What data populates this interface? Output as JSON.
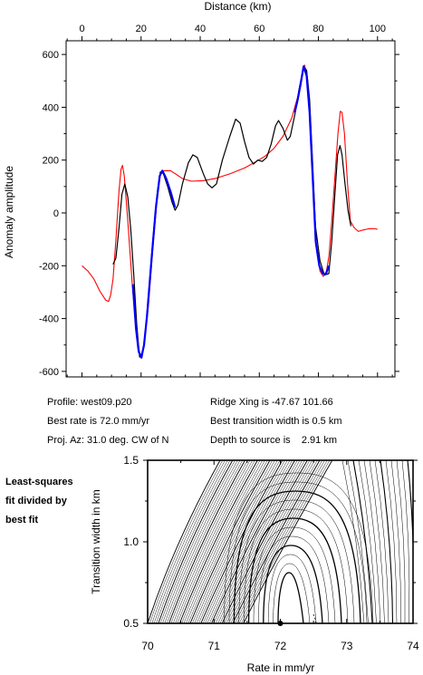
{
  "chart_data": [
    {
      "type": "line",
      "title": "",
      "xlabel": "Distance (km)",
      "ylabel": "Anomaly amplitude",
      "xlim": [
        -10,
        105
      ],
      "ylim": [
        -610,
        610
      ],
      "xticks": [
        0,
        20,
        40,
        60,
        80,
        100
      ],
      "yticks": [
        -600,
        -400,
        -200,
        0,
        200,
        400,
        600
      ],
      "x_axis_position": "top",
      "grid": false,
      "series": [
        {
          "role": "observed profile",
          "color": "#000000",
          "points": [
            [
              10.5,
              -195
            ],
            [
              11.5,
              -170
            ],
            [
              12.5,
              -60
            ],
            [
              13.5,
              70
            ],
            [
              14.5,
              110
            ],
            [
              15.5,
              60
            ],
            [
              16.5,
              -60
            ],
            [
              17.5,
              -230
            ],
            [
              18.5,
              -420
            ],
            [
              19.5,
              -545
            ],
            [
              20.3,
              -548
            ],
            [
              21.3,
              -470
            ],
            [
              22.5,
              -310
            ],
            [
              24,
              -100
            ],
            [
              25.5,
              80
            ],
            [
              26.5,
              155
            ],
            [
              27.5,
              150
            ],
            [
              29,
              100
            ],
            [
              30.5,
              40
            ],
            [
              31.5,
              10
            ],
            [
              32.5,
              30
            ],
            [
              34,
              110
            ],
            [
              36,
              190
            ],
            [
              37.5,
              220
            ],
            [
              39,
              210
            ],
            [
              41,
              150
            ],
            [
              42.5,
              110
            ],
            [
              44,
              95
            ],
            [
              45.5,
              110
            ],
            [
              47.5,
              200
            ],
            [
              50,
              290
            ],
            [
              52,
              355
            ],
            [
              53.5,
              340
            ],
            [
              55,
              270
            ],
            [
              56.5,
              210
            ],
            [
              58,
              185
            ],
            [
              59.5,
              200
            ],
            [
              61,
              195
            ],
            [
              62.5,
              210
            ],
            [
              64,
              260
            ],
            [
              65.5,
              330
            ],
            [
              66.5,
              350
            ],
            [
              68,
              320
            ],
            [
              69.5,
              275
            ],
            [
              70.5,
              290
            ],
            [
              72,
              370
            ],
            [
              73.5,
              470
            ],
            [
              75,
              555
            ],
            [
              76,
              540
            ],
            [
              77,
              430
            ],
            [
              78,
              200
            ],
            [
              79,
              -50
            ],
            [
              80.5,
              -180
            ],
            [
              82,
              -235
            ],
            [
              83.5,
              -230
            ],
            [
              84.5,
              -110
            ],
            [
              85.5,
              60
            ],
            [
              86.5,
              220
            ],
            [
              87.3,
              255
            ],
            [
              88,
              220
            ],
            [
              89,
              110
            ],
            [
              90,
              10
            ],
            [
              91,
              -50
            ]
          ]
        },
        {
          "role": "model fit",
          "color": "#ff0000",
          "points": [
            [
              0,
              -200
            ],
            [
              2,
              -220
            ],
            [
              4,
              -250
            ],
            [
              6,
              -295
            ],
            [
              8,
              -330
            ],
            [
              9,
              -335
            ],
            [
              9.7,
              -310
            ],
            [
              10.5,
              -250
            ],
            [
              11.5,
              -100
            ],
            [
              12.5,
              80
            ],
            [
              13.2,
              165
            ],
            [
              13.7,
              180
            ],
            [
              14.3,
              140
            ],
            [
              15.5,
              -30
            ],
            [
              17,
              -270
            ],
            [
              18.5,
              -470
            ],
            [
              19.8,
              -545
            ],
            [
              21,
              -505
            ],
            [
              22.5,
              -350
            ],
            [
              24,
              -130
            ],
            [
              25.5,
              60
            ],
            [
              26.7,
              155
            ],
            [
              28,
              160
            ],
            [
              30,
              160
            ],
            [
              32,
              145
            ],
            [
              34,
              130
            ],
            [
              37,
              120
            ],
            [
              41,
              122
            ],
            [
              45,
              130
            ],
            [
              50,
              148
            ],
            [
              55,
              170
            ],
            [
              59,
              195
            ],
            [
              62,
              215
            ],
            [
              65,
              245
            ],
            [
              68,
              290
            ],
            [
              71,
              360
            ],
            [
              73,
              440
            ],
            [
              74.5,
              530
            ],
            [
              75.3,
              560
            ],
            [
              76.3,
              510
            ],
            [
              77.3,
              350
            ],
            [
              78.3,
              100
            ],
            [
              79.3,
              -130
            ],
            [
              80.5,
              -220
            ],
            [
              81.6,
              -240
            ],
            [
              82.6,
              -230
            ],
            [
              83.6,
              -160
            ],
            [
              84.6,
              -20
            ],
            [
              85.6,
              140
            ],
            [
              86.6,
              300
            ],
            [
              87.4,
              385
            ],
            [
              88,
              380
            ],
            [
              88.8,
              300
            ],
            [
              89.8,
              120
            ],
            [
              90.8,
              -30
            ],
            [
              92,
              -55
            ],
            [
              93.5,
              -70
            ],
            [
              95,
              -65
            ],
            [
              97,
              -60
            ],
            [
              99,
              -60
            ],
            [
              100,
              -62
            ]
          ]
        },
        {
          "role": "fit window",
          "color": "#0000ff",
          "points": [
            [
              17.2,
              -270
            ],
            [
              18.3,
              -440
            ],
            [
              19.2,
              -525
            ],
            [
              20.1,
              -548
            ],
            [
              21,
              -500
            ],
            [
              22,
              -390
            ],
            [
              23.5,
              -180
            ],
            [
              25,
              20
            ],
            [
              26.3,
              140
            ],
            [
              27.2,
              160
            ],
            [
              28.5,
              130
            ],
            [
              30,
              80
            ],
            [
              31.5,
              20
            ]
          ]
        },
        {
          "role": "fit window",
          "color": "#0000ff",
          "points": [
            [
              72,
              380
            ],
            [
              73,
              430
            ],
            [
              74,
              490
            ],
            [
              75,
              555
            ],
            [
              76,
              520
            ],
            [
              77,
              380
            ],
            [
              78,
              150
            ],
            [
              79.1,
              -110
            ],
            [
              80.3,
              -200
            ],
            [
              81.5,
              -230
            ],
            [
              82.5,
              -232
            ],
            [
              83.5,
              -200
            ]
          ]
        }
      ]
    },
    {
      "type": "contour",
      "title": "",
      "xlabel": "Rate in mm/yr",
      "ylabel": "Transition width in km",
      "xlim": [
        70,
        74
      ],
      "ylim": [
        0.5,
        1.5
      ],
      "xticks": [
        70,
        71,
        72,
        73,
        74
      ],
      "yticks": [
        0.5,
        1.0,
        1.5
      ],
      "best_fit_marker": {
        "rate": 72.0,
        "width": 0.5
      }
    }
  ],
  "info": {
    "profile": "Profile: west09.p20",
    "best_rate": "Best rate is 72.0 mm/yr",
    "proj_az": "Proj. Az: 31.0 deg. CW of N",
    "ridge_xing": "Ridge Xing is -47.67 101.66",
    "best_transition": "Best transition width is 0.5 km",
    "depth": "Depth to source is    2.91 km"
  },
  "side_note": [
    "Least-squares",
    "fit divided by",
    "best fit"
  ]
}
